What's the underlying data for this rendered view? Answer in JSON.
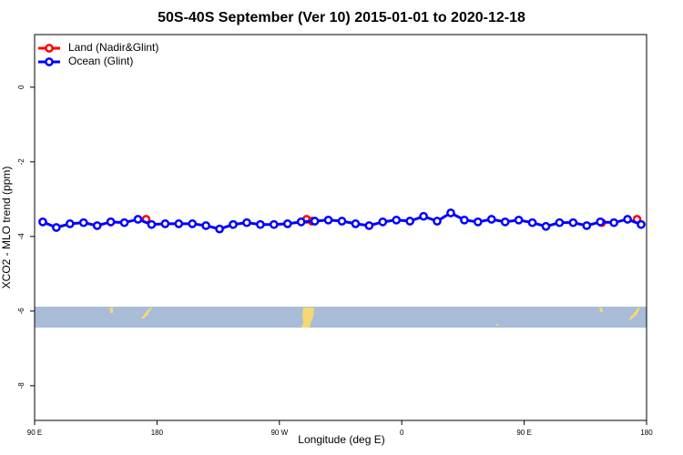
{
  "chart_data": {
    "type": "line",
    "title": "50S-40S September (Ver 10)   2015-01-01 to 2020-12-18",
    "x_label": "Longitude (deg E)",
    "y_label": "XCO2 - MLO trend (ppm)",
    "xlim": [
      90,
      540
    ],
    "ylim": [
      -8.93,
      1.41
    ],
    "xticks": [
      {
        "value": 90,
        "label": "90 E"
      },
      180,
      {
        "value": 270,
        "label": "90 W"
      },
      {
        "value": 360,
        "label": "0"
      },
      {
        "value": 450,
        "label": "90 E"
      },
      {
        "value": 540,
        "label": "180"
      }
    ],
    "yticks": [
      0,
      -2,
      -4,
      -6,
      -8
    ],
    "legend": "top-left",
    "series": [
      {
        "name": "Land (Nadir&Glint)",
        "color": "#ff0000",
        "x": [
          146,
          172,
          290,
          294,
          507,
          533
        ],
        "values": [
          -3.61,
          -3.54,
          -3.54,
          -3.59,
          -3.63,
          -3.54
        ]
      },
      {
        "name": "Ocean (Glint)",
        "color": "#0000ff",
        "x": [
          96,
          106,
          116,
          126,
          136,
          146,
          156,
          166,
          176,
          186,
          196,
          206,
          216,
          226,
          236,
          246,
          256,
          266,
          276,
          286,
          296,
          306,
          316,
          326,
          336,
          346,
          356,
          366,
          376,
          386,
          396,
          406,
          416,
          426,
          436,
          446,
          456,
          466,
          476,
          486,
          496,
          506,
          516,
          526,
          536
        ],
        "values": [
          -3.61,
          -3.76,
          -3.66,
          -3.63,
          -3.71,
          -3.61,
          -3.63,
          -3.54,
          -3.68,
          -3.66,
          -3.66,
          -3.66,
          -3.71,
          -3.8,
          -3.68,
          -3.63,
          -3.68,
          -3.68,
          -3.66,
          -3.61,
          -3.59,
          -3.56,
          -3.59,
          -3.66,
          -3.71,
          -3.61,
          -3.56,
          -3.59,
          -3.46,
          -3.59,
          -3.37,
          -3.56,
          -3.61,
          -3.54,
          -3.61,
          -3.56,
          -3.63,
          -3.73,
          -3.63,
          -3.63,
          -3.71,
          -3.61,
          -3.63,
          -3.54,
          -3.68
        ]
      }
    ]
  }
}
